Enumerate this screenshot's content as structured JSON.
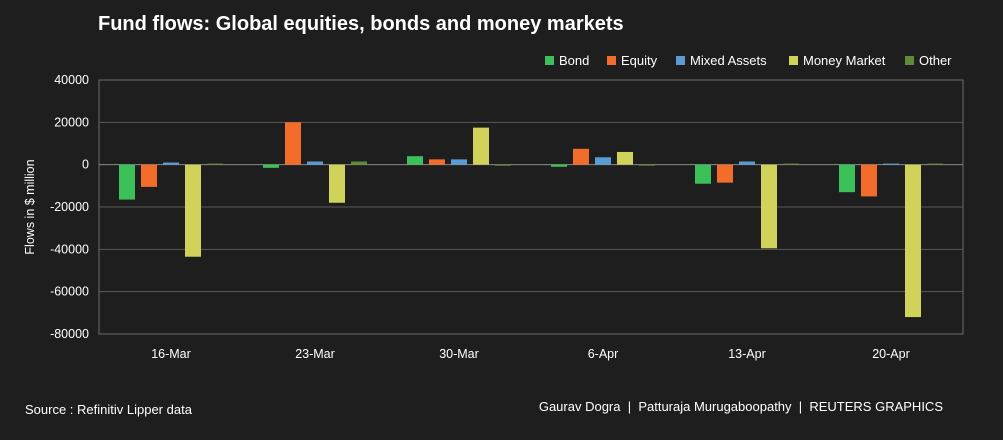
{
  "chart_data": {
    "type": "bar",
    "title": "Fund flows: Global equities, bonds and money markets",
    "ylabel": "Flows in $ million",
    "xlabel": "",
    "categories": [
      "16-Mar",
      "23-Mar",
      "30-Mar",
      "6-Apr",
      "13-Apr",
      "20-Apr"
    ],
    "ylim": [
      -80000,
      40000
    ],
    "yticks": [
      40000,
      20000,
      0,
      -20000,
      -40000,
      -60000,
      -80000
    ],
    "grid": true,
    "legend_position": "top-right",
    "series": [
      {
        "name": "Bond",
        "color": "#3cc15a",
        "values": [
          -16500,
          -1500,
          4000,
          -1000,
          -9000,
          -13000
        ]
      },
      {
        "name": "Equity",
        "color": "#f26c2b",
        "values": [
          -10500,
          20000,
          2500,
          7500,
          -8500,
          -15000
        ]
      },
      {
        "name": "Mixed Assets",
        "color": "#5b9bd5",
        "values": [
          1000,
          1500,
          2500,
          3500,
          1500,
          500
        ]
      },
      {
        "name": "Money Market",
        "color": "#cfd35a",
        "values": [
          -43500,
          -18000,
          17500,
          6000,
          -39500,
          -72000
        ]
      },
      {
        "name": "Other",
        "color": "#5f8a3a",
        "values": [
          500,
          1500,
          -500,
          -200,
          500,
          500
        ]
      }
    ]
  },
  "footer": {
    "source": "Source : Refinitiv Lipper data",
    "credit": "Gaurav Dogra  |  Patturaja Murugaboopathy  |  REUTERS GRAPHICS"
  }
}
